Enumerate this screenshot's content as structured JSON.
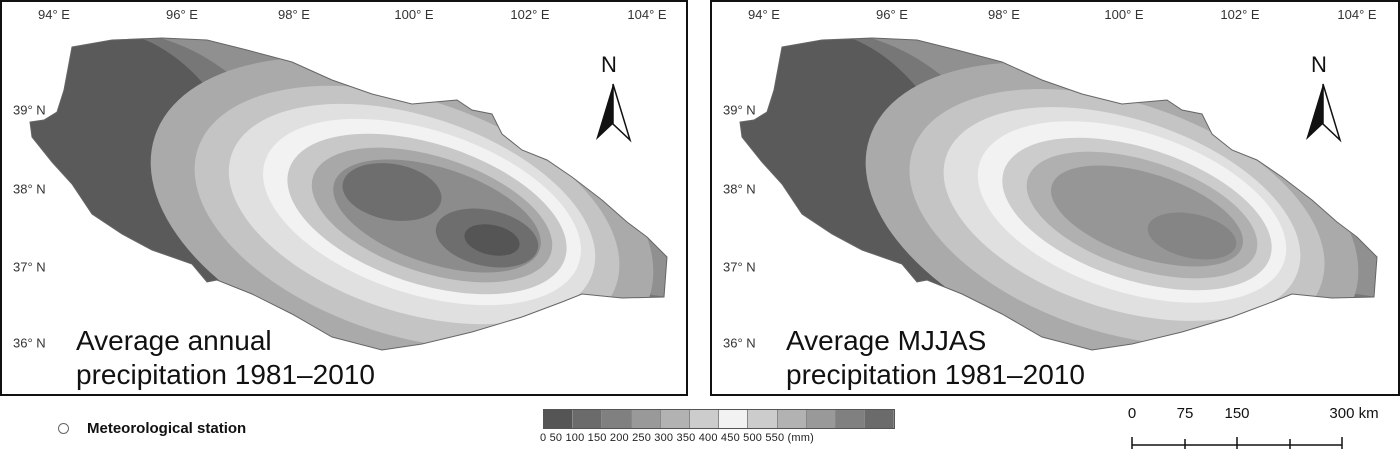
{
  "panels": {
    "left": {
      "caption_line1": "Average annual",
      "caption_line2": "precipitation 1981–2010"
    },
    "right": {
      "caption_line1": "Average MJJAS",
      "caption_line2": "precipitation 1981–2010"
    }
  },
  "lon_labels": [
    "94° E",
    "96° E",
    "98° E",
    "100° E",
    "102° E",
    "104° E"
  ],
  "lat_labels": [
    "39° N",
    "38° N",
    "37° N",
    "36° N"
  ],
  "north_arrow": {
    "letter": "N",
    "icon": "north-arrow-icon"
  },
  "legend": {
    "station_label": "Meteorological station",
    "station_icon": "circle-marker-icon",
    "ramp_ticks": "0   50  100  150  200  250  300  350  400  450  500  550  (mm)",
    "ramp_colors": [
      "#555555",
      "#6b6b6b",
      "#808080",
      "#999999",
      "#b2b2b2",
      "#cccccc",
      "#f2f2f2",
      "#cccccc",
      "#b2b2b2",
      "#999999",
      "#808080",
      "#6b6b6b"
    ]
  },
  "scale_bar": {
    "labels": [
      "0",
      "75",
      "150",
      "300 km"
    ]
  }
}
